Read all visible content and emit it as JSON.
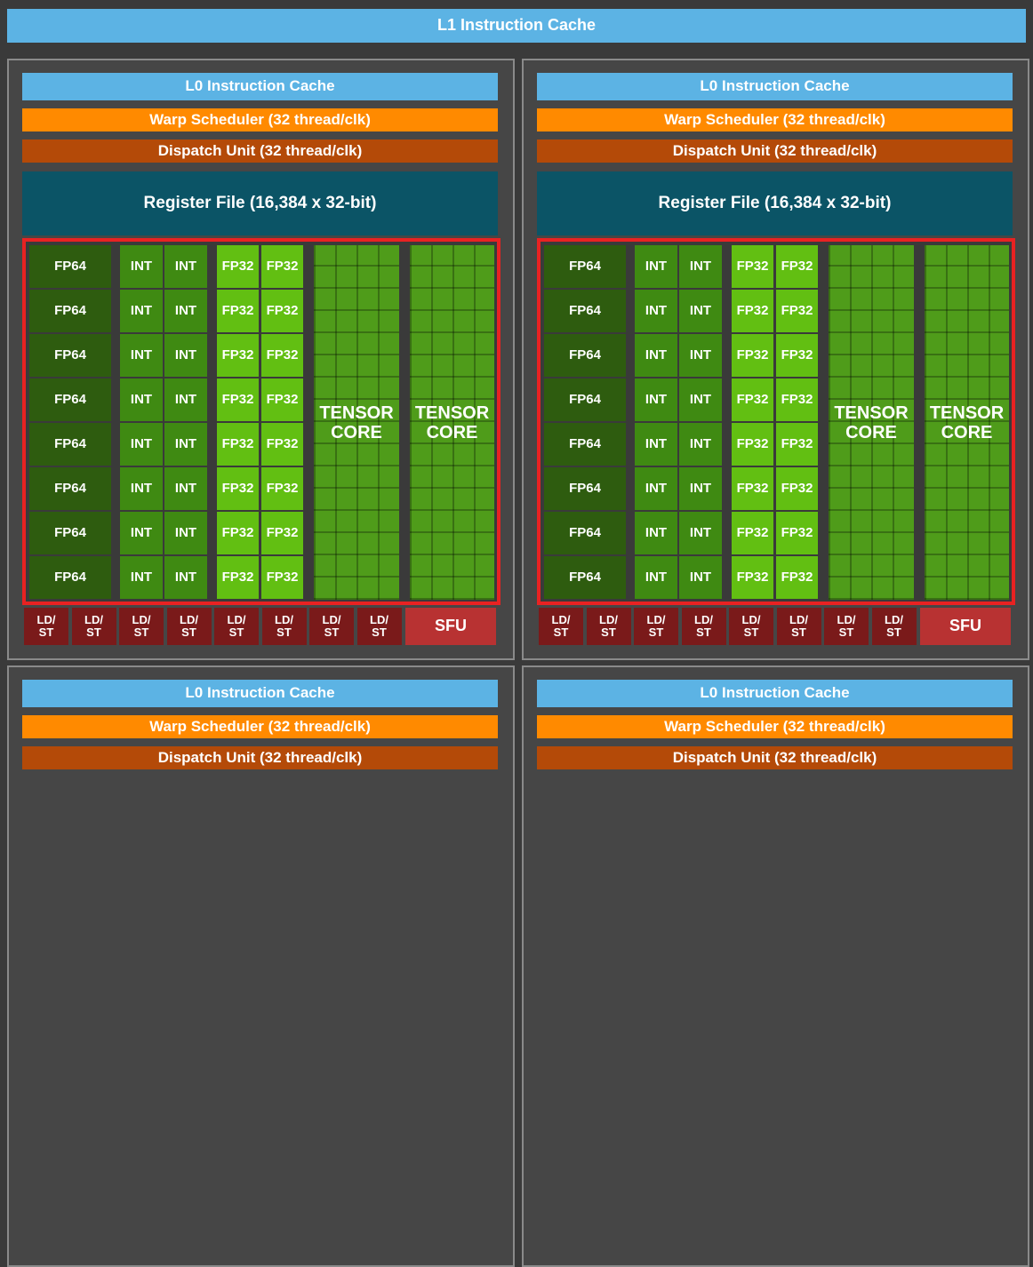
{
  "l1_cache": "L1 Instruction Cache",
  "partitions": [
    {
      "l0_cache": "L0 Instruction Cache",
      "warp_scheduler": "Warp Scheduler (32 thread/clk)",
      "dispatch_unit": "Dispatch Unit (32 thread/clk)",
      "register_file": "Register File (16,384 x 32-bit)",
      "fp64": [
        "FP64",
        "FP64",
        "FP64",
        "FP64",
        "FP64",
        "FP64",
        "FP64",
        "FP64"
      ],
      "int": [
        [
          "INT",
          "INT"
        ],
        [
          "INT",
          "INT"
        ],
        [
          "INT",
          "INT"
        ],
        [
          "INT",
          "INT"
        ],
        [
          "INT",
          "INT"
        ],
        [
          "INT",
          "INT"
        ],
        [
          "INT",
          "INT"
        ],
        [
          "INT",
          "INT"
        ]
      ],
      "fp32": [
        [
          "FP32",
          "FP32"
        ],
        [
          "FP32",
          "FP32"
        ],
        [
          "FP32",
          "FP32"
        ],
        [
          "FP32",
          "FP32"
        ],
        [
          "FP32",
          "FP32"
        ],
        [
          "FP32",
          "FP32"
        ],
        [
          "FP32",
          "FP32"
        ],
        [
          "FP32",
          "FP32"
        ]
      ],
      "tensor_cores": [
        "TENSOR\nCORE",
        "TENSOR\nCORE"
      ],
      "ld_st": [
        "LD/\nST",
        "LD/\nST",
        "LD/\nST",
        "LD/\nST",
        "LD/\nST",
        "LD/\nST",
        "LD/\nST",
        "LD/\nST"
      ],
      "sfu": "SFU"
    },
    {
      "l0_cache": "L0 Instruction Cache",
      "warp_scheduler": "Warp Scheduler (32 thread/clk)",
      "dispatch_unit": "Dispatch Unit (32 thread/clk)",
      "register_file": "Register File (16,384 x 32-bit)",
      "fp64": [
        "FP64",
        "FP64",
        "FP64",
        "FP64",
        "FP64",
        "FP64",
        "FP64",
        "FP64"
      ],
      "int": [
        [
          "INT",
          "INT"
        ],
        [
          "INT",
          "INT"
        ],
        [
          "INT",
          "INT"
        ],
        [
          "INT",
          "INT"
        ],
        [
          "INT",
          "INT"
        ],
        [
          "INT",
          "INT"
        ],
        [
          "INT",
          "INT"
        ],
        [
          "INT",
          "INT"
        ]
      ],
      "fp32": [
        [
          "FP32",
          "FP32"
        ],
        [
          "FP32",
          "FP32"
        ],
        [
          "FP32",
          "FP32"
        ],
        [
          "FP32",
          "FP32"
        ],
        [
          "FP32",
          "FP32"
        ],
        [
          "FP32",
          "FP32"
        ],
        [
          "FP32",
          "FP32"
        ],
        [
          "FP32",
          "FP32"
        ]
      ],
      "tensor_cores": [
        "TENSOR\nCORE",
        "TENSOR\nCORE"
      ],
      "ld_st": [
        "LD/\nST",
        "LD/\nST",
        "LD/\nST",
        "LD/\nST",
        "LD/\nST",
        "LD/\nST",
        "LD/\nST",
        "LD/\nST"
      ],
      "sfu": "SFU"
    },
    {
      "l0_cache": "L0 Instruction Cache",
      "warp_scheduler": "Warp Scheduler (32 thread/clk)",
      "dispatch_unit": "Dispatch Unit (32 thread/clk)"
    },
    {
      "l0_cache": "L0 Instruction Cache",
      "warp_scheduler": "Warp Scheduler (32 thread/clk)",
      "dispatch_unit": "Dispatch Unit (32 thread/clk)"
    }
  ]
}
